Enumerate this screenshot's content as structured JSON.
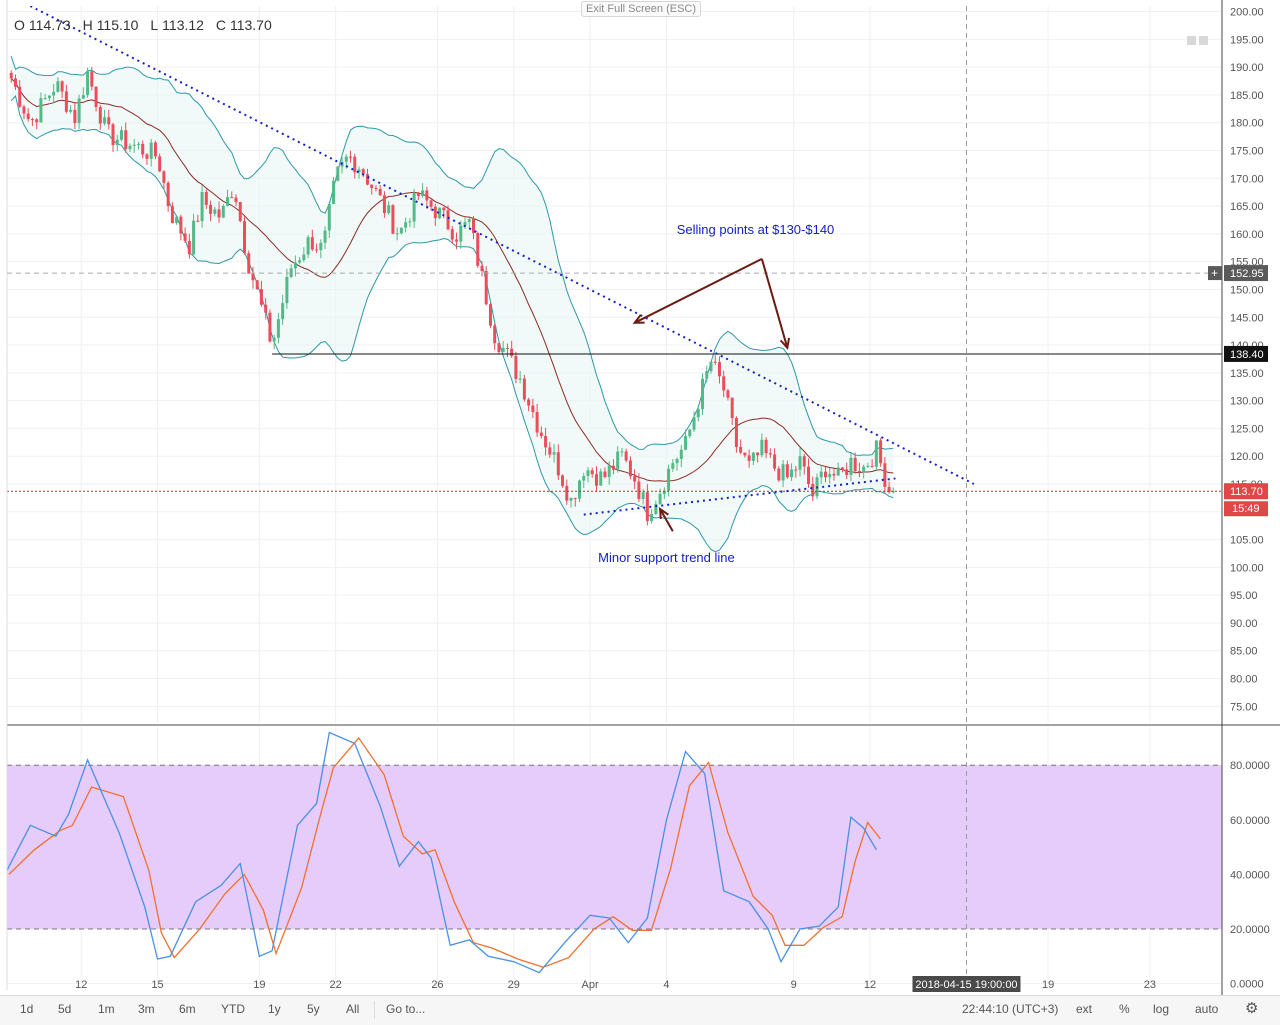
{
  "header": {
    "ohlc": [
      {
        "key": "O",
        "value": "114.73"
      },
      {
        "key": "H",
        "value": "115.10"
      },
      {
        "key": "L",
        "value": "113.12"
      },
      {
        "key": "C",
        "value": "113.70"
      }
    ],
    "exit_fullscreen": "Exit Full Screen (ESC)"
  },
  "toolbar": {
    "ranges": [
      "1d",
      "5d",
      "1m",
      "3m",
      "6m",
      "YTD",
      "1y",
      "5y",
      "All"
    ],
    "goto": "Go to...",
    "time": "22:44:10 (UTC+3)",
    "scale_opts": [
      "ext",
      "%",
      "log",
      "auto"
    ]
  },
  "colors": {
    "up": "#53b987",
    "down": "#eb4d5c",
    "band_line": "#2e97a8",
    "basis": "#8b2c24",
    "trend": "#1520c8",
    "k_line": "#4a90e2",
    "d_line": "#f07030",
    "osc_band": "#e6ccfa",
    "price_line": "#e02020",
    "arrow": "#6e1a12"
  },
  "chart_data": [
    {
      "type": "candlestick",
      "title": "",
      "x_ticks": [
        "12",
        "15",
        "19",
        "22",
        "26",
        "29",
        "Apr",
        "4",
        "9",
        "12",
        "19",
        "23"
      ],
      "x_tick_dates": [
        "2018-03-12",
        "2018-03-15",
        "2018-03-19",
        "2018-03-22",
        "2018-03-26",
        "2018-03-29",
        "2018-04-01",
        "2018-04-04",
        "2018-04-09",
        "2018-04-12",
        "2018-04-19",
        "2018-04-23"
      ],
      "x_range": [
        "2018-03-09 02:00",
        "2018-04-25 20:00"
      ],
      "crosshair_time": "2018-04-15 19:00:00",
      "y_range": [
        72,
        201
      ],
      "y_ticks": [
        75,
        80,
        85,
        90,
        95,
        100,
        105,
        110,
        115,
        120,
        125,
        130,
        135,
        140,
        145,
        150,
        155,
        160,
        165,
        170,
        175,
        180,
        185,
        190,
        195,
        200
      ],
      "grid": true,
      "price_labels": [
        {
          "value": 152.95,
          "label": "152.95",
          "kind": "crosshair"
        },
        {
          "value": 138.4,
          "label": "138.40",
          "kind": "horizontal"
        },
        {
          "value": 113.7,
          "label": "113.70",
          "kind": "last"
        }
      ],
      "countdown": "15:49",
      "resistance_level": 138.4,
      "close_path": [
        {
          "t": "2018-03-09 06:00",
          "v": 188
        },
        {
          "t": "2018-03-10 00:00",
          "v": 180
        },
        {
          "t": "2018-03-11 00:00",
          "v": 187
        },
        {
          "t": "2018-03-11 18:00",
          "v": 181
        },
        {
          "t": "2018-03-12 06:00",
          "v": 189
        },
        {
          "t": "2018-03-13 00:00",
          "v": 178
        },
        {
          "t": "2018-03-14 00:00",
          "v": 176
        },
        {
          "t": "2018-03-15 00:00",
          "v": 174
        },
        {
          "t": "2018-03-15 12:00",
          "v": 164
        },
        {
          "t": "2018-03-16 06:00",
          "v": 158
        },
        {
          "t": "2018-03-16 18:00",
          "v": 166
        },
        {
          "t": "2018-03-17 12:00",
          "v": 163
        },
        {
          "t": "2018-03-18 00:00",
          "v": 169
        },
        {
          "t": "2018-03-18 12:00",
          "v": 156
        },
        {
          "t": "2018-03-19 00:00",
          "v": 148
        },
        {
          "t": "2018-03-19 12:00",
          "v": 140
        },
        {
          "t": "2018-03-20 06:00",
          "v": 154
        },
        {
          "t": "2018-03-21 00:00",
          "v": 159
        },
        {
          "t": "2018-03-21 12:00",
          "v": 157
        },
        {
          "t": "2018-03-22 00:00",
          "v": 170
        },
        {
          "t": "2018-03-22 12:00",
          "v": 174
        },
        {
          "t": "2018-03-23 00:00",
          "v": 172
        },
        {
          "t": "2018-03-23 18:00",
          "v": 166
        },
        {
          "t": "2018-03-24 12:00",
          "v": 160
        },
        {
          "t": "2018-03-25 06:00",
          "v": 167
        },
        {
          "t": "2018-03-26 00:00",
          "v": 164
        },
        {
          "t": "2018-03-26 18:00",
          "v": 160
        },
        {
          "t": "2018-03-27 06:00",
          "v": 162
        },
        {
          "t": "2018-03-27 18:00",
          "v": 152
        },
        {
          "t": "2018-03-28 06:00",
          "v": 142
        },
        {
          "t": "2018-03-28 18:00",
          "v": 138
        },
        {
          "t": "2018-03-29 06:00",
          "v": 134
        },
        {
          "t": "2018-03-30 00:00",
          "v": 125
        },
        {
          "t": "2018-03-30 18:00",
          "v": 118
        },
        {
          "t": "2018-03-31 06:00",
          "v": 112
        },
        {
          "t": "2018-03-31 18:00",
          "v": 118
        },
        {
          "t": "2018-04-01 12:00",
          "v": 116
        },
        {
          "t": "2018-04-02 06:00",
          "v": 120
        },
        {
          "t": "2018-04-02 18:00",
          "v": 116
        },
        {
          "t": "2018-04-03 06:00",
          "v": 110
        },
        {
          "t": "2018-04-03 18:00",
          "v": 114
        },
        {
          "t": "2018-04-04 06:00",
          "v": 119
        },
        {
          "t": "2018-04-04 18:00",
          "v": 122
        },
        {
          "t": "2018-04-05 06:00",
          "v": 130
        },
        {
          "t": "2018-04-05 18:00",
          "v": 137
        },
        {
          "t": "2018-04-06 06:00",
          "v": 132
        },
        {
          "t": "2018-04-06 18:00",
          "v": 122
        },
        {
          "t": "2018-04-07 06:00",
          "v": 118
        },
        {
          "t": "2018-04-07 18:00",
          "v": 121
        },
        {
          "t": "2018-04-08 06:00",
          "v": 118
        },
        {
          "t": "2018-04-08 18:00",
          "v": 116
        },
        {
          "t": "2018-04-09 06:00",
          "v": 119
        },
        {
          "t": "2018-04-09 18:00",
          "v": 113
        },
        {
          "t": "2018-04-10 06:00",
          "v": 118
        },
        {
          "t": "2018-04-10 18:00",
          "v": 116
        },
        {
          "t": "2018-04-11 06:00",
          "v": 119
        },
        {
          "t": "2018-04-11 18:00",
          "v": 118
        },
        {
          "t": "2018-04-12 06:00",
          "v": 121
        },
        {
          "t": "2018-04-12 18:00",
          "v": 114
        },
        {
          "t": "2018-04-13 00:00",
          "v": 113.7
        }
      ],
      "trendlines": [
        {
          "name": "descending resistance",
          "from": {
            "t": "2018-03-10 00:00",
            "v": 201
          },
          "to": {
            "t": "2018-04-16 02:00",
            "v": 115
          }
        },
        {
          "name": "minor support",
          "from": {
            "t": "2018-03-31 18:00",
            "v": 109.5
          },
          "to": {
            "t": "2018-04-13 00:00",
            "v": 116
          }
        }
      ],
      "annotations": [
        {
          "text": "Selling points at $130-$140",
          "t": "2018-04-07 12:00",
          "v": 160
        },
        {
          "text": "Minor support trend line",
          "t": "2018-04-04 00:00",
          "v": 101
        }
      ]
    },
    {
      "type": "line",
      "title": "",
      "y_range": [
        -2,
        94
      ],
      "y_ticks": [
        "0.0000",
        "20.0000",
        "40.0000",
        "60.0000",
        "80.0000"
      ],
      "band": [
        20,
        80
      ],
      "series_path": [
        {
          "t": "2018-03-09 00:00",
          "v": 40
        },
        {
          "t": "2018-03-10 00:00",
          "v": 58
        },
        {
          "t": "2018-03-11 00:00",
          "v": 54
        },
        {
          "t": "2018-03-11 12:00",
          "v": 62
        },
        {
          "t": "2018-03-12 06:00",
          "v": 82
        },
        {
          "t": "2018-03-13 12:00",
          "v": 55
        },
        {
          "t": "2018-03-14 12:00",
          "v": 28
        },
        {
          "t": "2018-03-15 00:00",
          "v": 9
        },
        {
          "t": "2018-03-15 12:00",
          "v": 10
        },
        {
          "t": "2018-03-16 12:00",
          "v": 30
        },
        {
          "t": "2018-03-17 12:00",
          "v": 36
        },
        {
          "t": "2018-03-18 06:00",
          "v": 44
        },
        {
          "t": "2018-03-19 00:00",
          "v": 10
        },
        {
          "t": "2018-03-19 12:00",
          "v": 12
        },
        {
          "t": "2018-03-20 12:00",
          "v": 58
        },
        {
          "t": "2018-03-21 06:00",
          "v": 66
        },
        {
          "t": "2018-03-21 18:00",
          "v": 92
        },
        {
          "t": "2018-03-22 18:00",
          "v": 88
        },
        {
          "t": "2018-03-23 18:00",
          "v": 65
        },
        {
          "t": "2018-03-24 12:00",
          "v": 43
        },
        {
          "t": "2018-03-25 06:00",
          "v": 52
        },
        {
          "t": "2018-03-25 18:00",
          "v": 46
        },
        {
          "t": "2018-03-26 12:00",
          "v": 14
        },
        {
          "t": "2018-03-27 06:00",
          "v": 16
        },
        {
          "t": "2018-03-28 00:00",
          "v": 10
        },
        {
          "t": "2018-03-29 00:00",
          "v": 8
        },
        {
          "t": "2018-03-30 00:00",
          "v": 4
        },
        {
          "t": "2018-03-31 00:00",
          "v": 15
        },
        {
          "t": "2018-04-01 00:00",
          "v": 25
        },
        {
          "t": "2018-04-01 18:00",
          "v": 24
        },
        {
          "t": "2018-04-02 12:00",
          "v": 15
        },
        {
          "t": "2018-04-03 06:00",
          "v": 24
        },
        {
          "t": "2018-04-04 00:00",
          "v": 60
        },
        {
          "t": "2018-04-04 18:00",
          "v": 85
        },
        {
          "t": "2018-04-05 12:00",
          "v": 77
        },
        {
          "t": "2018-04-06 06:00",
          "v": 34
        },
        {
          "t": "2018-04-07 06:00",
          "v": 30
        },
        {
          "t": "2018-04-08 00:00",
          "v": 20
        },
        {
          "t": "2018-04-08 12:00",
          "v": 8
        },
        {
          "t": "2018-04-09 06:00",
          "v": 20
        },
        {
          "t": "2018-04-10 00:00",
          "v": 21
        },
        {
          "t": "2018-04-10 18:00",
          "v": 28
        },
        {
          "t": "2018-04-11 06:00",
          "v": 61
        },
        {
          "t": "2018-04-11 18:00",
          "v": 57
        },
        {
          "t": "2018-04-12 06:00",
          "v": 49
        }
      ]
    }
  ]
}
